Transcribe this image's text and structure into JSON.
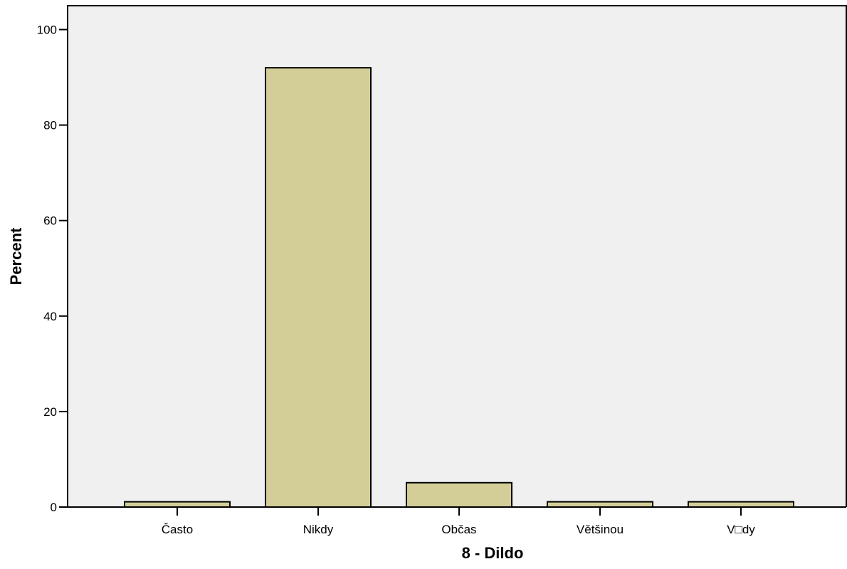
{
  "chart_data": {
    "type": "bar",
    "title": "",
    "xlabel": "8 - Dildo",
    "ylabel": "Percent",
    "categories": [
      "Často",
      "Nikdy",
      "Občas",
      "Většinou",
      "V□dy"
    ],
    "values": [
      1.1,
      92.0,
      5.1,
      1.1,
      1.1
    ],
    "ylim": [
      0,
      105
    ],
    "yticks": [
      "0",
      "20",
      "40",
      "60",
      "80",
      "100"
    ],
    "grid": false,
    "legend": "none"
  },
  "colors": {
    "plot_background": "#f0f0f0",
    "bar_fill": "#d3ce97",
    "bar_stroke": "#000000"
  }
}
